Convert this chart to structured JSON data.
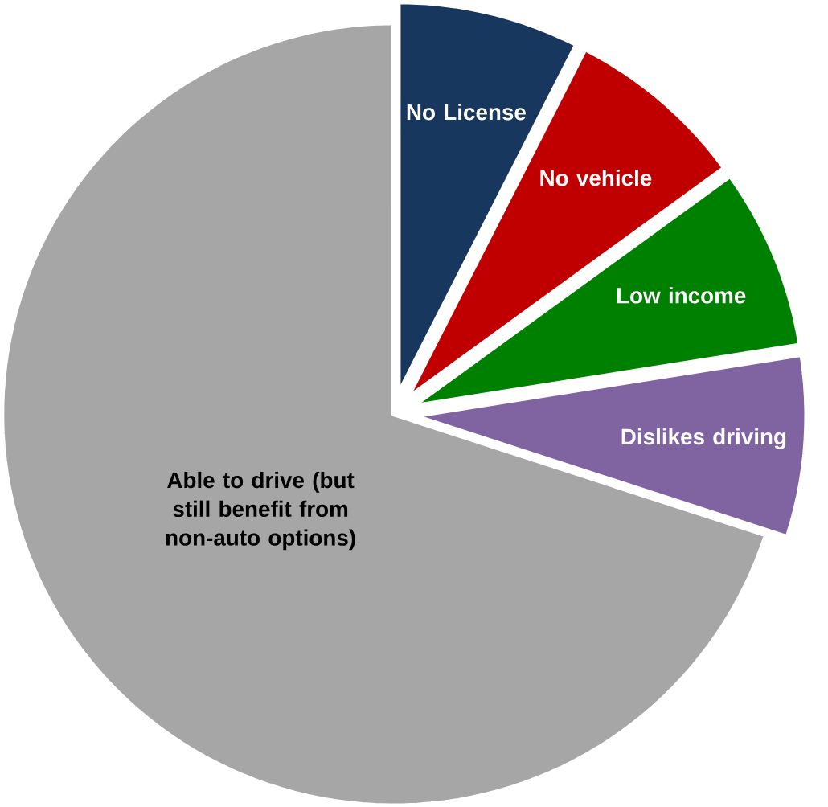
{
  "chart_data": {
    "type": "pie",
    "categories": [
      "No License",
      "No vehicle",
      "Low income",
      "Dislikes driving",
      "Able to drive (but still benefit from non-auto options)"
    ],
    "values": [
      7.5,
      7.5,
      7.5,
      7.5,
      70
    ],
    "colors": [
      "#17375e",
      "#c00000",
      "#008000",
      "#8064a2",
      "#a6a6a6"
    ]
  }
}
